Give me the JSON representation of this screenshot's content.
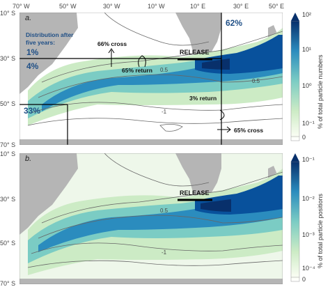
{
  "panel_a": {
    "tag": "a.",
    "lon_labels": [
      "70° W",
      "50° W",
      "30° W",
      "10° W",
      "10° E",
      "30° E",
      "50° E"
    ],
    "lat_labels": [
      "10° S",
      "30° S",
      "50° S",
      "70° S"
    ],
    "distribution_title_line1": "Distribution after",
    "distribution_title_line2": "five years:",
    "pct_1": "1%",
    "pct_4": "4%",
    "pct_33": "33%",
    "pct_62": "62%",
    "cross_66": "66% cross",
    "return_65": "65% return",
    "return_3": "3% return",
    "cross_65": "65% cross",
    "release": "RELEASE",
    "contour_labels": [
      "0.5",
      "0.5",
      "-1"
    ],
    "colorbar_title": "% of total particle numbers",
    "colorbar_ticks": [
      "10²",
      "10¹",
      "10⁰",
      "10⁻¹",
      "0"
    ]
  },
  "panel_b": {
    "tag": "b.",
    "lat_labels": [
      "10° S",
      "30° S",
      "50° S",
      "70° S"
    ],
    "release": "RELEASE",
    "contour_labels": [
      "0.5",
      "-1"
    ],
    "colorbar_title": "% of total particle positions",
    "colorbar_ticks": [
      "10⁻¹",
      "10⁻²",
      "10⁻³",
      "10⁻⁴",
      "0"
    ]
  },
  "colors": {
    "land": "#b5b5b5",
    "ocean_low": "#eef7ea",
    "ocean_high": "#08306b",
    "release_line": "#000000",
    "label_blue": "#1f4f86"
  }
}
